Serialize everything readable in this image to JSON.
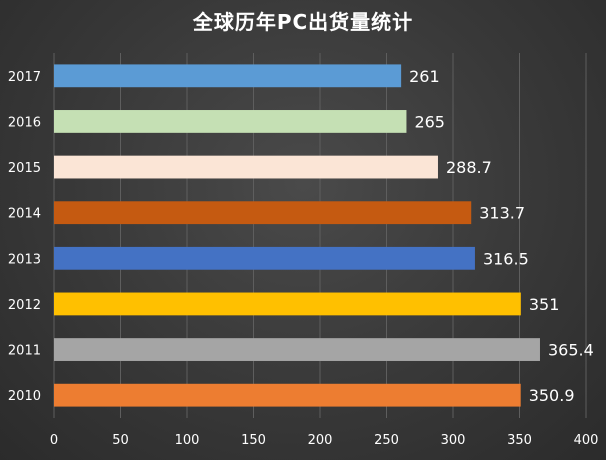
{
  "chart_data": {
    "type": "bar",
    "orientation": "horizontal",
    "title": "全球历年PC出货量统计",
    "categories": [
      "2010",
      "2011",
      "2012",
      "2013",
      "2014",
      "2015",
      "2016",
      "2017"
    ],
    "values": [
      350.9,
      365.4,
      351,
      316.5,
      313.7,
      288.7,
      265,
      261
    ],
    "data_labels": [
      "350.9",
      "365.4",
      "351",
      "316.5",
      "313.7",
      "288.7",
      "265",
      "261"
    ],
    "bar_colors": [
      "#ED7D31",
      "#A5A5A5",
      "#FFC000",
      "#4472C4",
      "#C55A11",
      "#FBE5D6",
      "#C5E0B4",
      "#5B9BD5"
    ],
    "xlim": [
      0,
      400
    ],
    "xticks": [
      "0",
      "50",
      "100",
      "150",
      "200",
      "250",
      "300",
      "350",
      "400"
    ],
    "grid": true,
    "legend": "none",
    "background": "#3a3a3a"
  }
}
